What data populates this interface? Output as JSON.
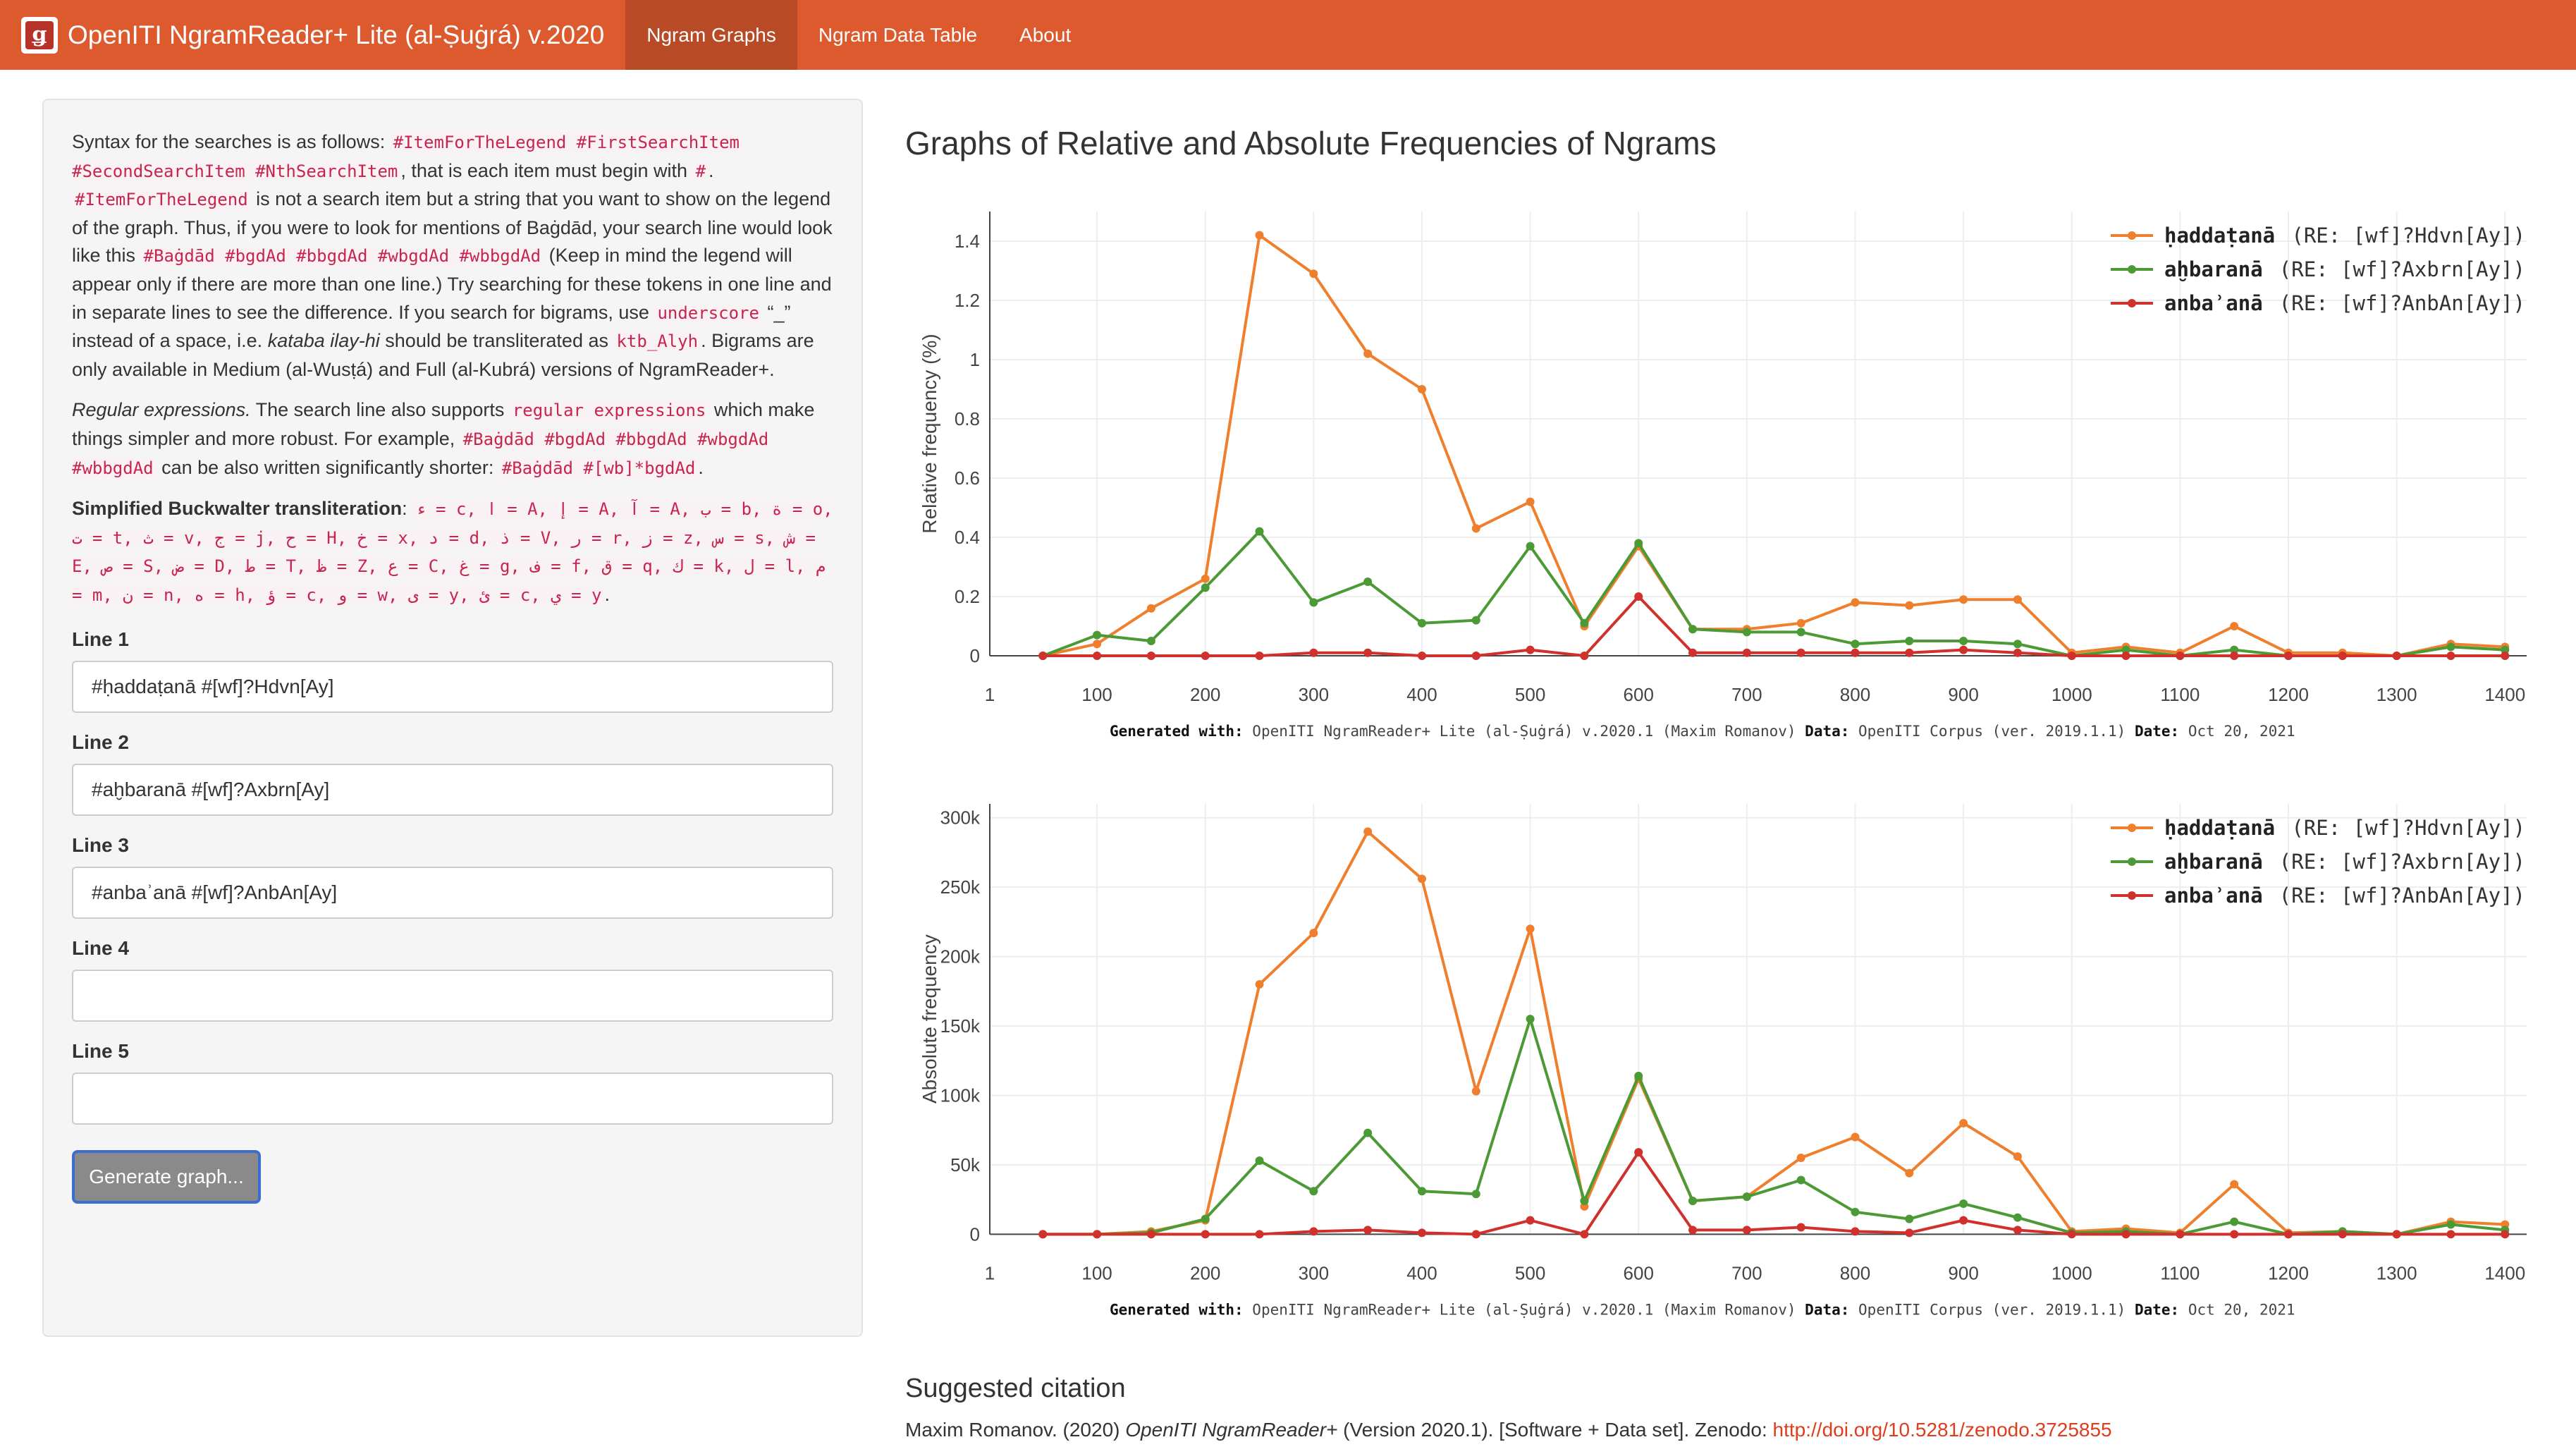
{
  "navbar": {
    "brand": "OpenITI NgramReader+ Lite (al-Ṣuġrá) v.2020",
    "logo_glyph": "ǥ",
    "tabs": [
      {
        "label": "Ngram Graphs",
        "active": true
      },
      {
        "label": "Ngram Data Table",
        "active": false
      },
      {
        "label": "About",
        "active": false
      }
    ]
  },
  "help": {
    "p1_a": "Syntax for the searches is as follows: ",
    "p1_code1": "#ItemForTheLegend #FirstSearchItem #SecondSearchItem #NthSearchItem",
    "p1_b": ", that is each item must begin with ",
    "p1_code2": "#",
    "p1_c": ". ",
    "p1_code3": "#ItemForTheLegend",
    "p1_d": " is not a search item but a string that you want to show on the legend of the graph. Thus, if you were to look for mentions of Baġdād, your search line would look like this ",
    "p1_code4": "#Baġdād #bgdAd #bbgdAd #wbgdAd #wbbgdAd",
    "p1_e": " (Keep in mind the legend will appear only if there are more than one line.) Try searching for these tokens in one line and in separate lines to see the difference. If you search for bigrams, use ",
    "p1_code5": "underscore",
    "p1_f": " “_” instead of a space, i.e. ",
    "p1_ital": "kataba ilay-hi",
    "p1_g": " should be transliterated as ",
    "p1_code6": "ktb_Alyh",
    "p1_h": ". Bigrams are only available in Medium (al-Wusṭá) and Full (al-Kubrá) versions of NgramReader+.",
    "p2_ital": "Regular expressions.",
    "p2_a": " The search line also supports ",
    "p2_code1": "regular expressions",
    "p2_b": " which make things simpler and more robust. For example, ",
    "p2_code2": "#Baġdād #bgdAd #bbgdAd #wbgdAd #wbbgdAd",
    "p2_c": " can be also written significantly shorter: ",
    "p2_code3": "#Baġdād #[wb]*bgdAd",
    "p2_d": ".",
    "p3_bold": "Simplified Buckwalter transliteration",
    "p3_a": ": ",
    "p3_code": "ء = c, ا = A, إ = A, آ = A, ب = b, ة = o, ت = t, ث = v, ج = j, ح = H, خ = x, د = d, ذ = V, ر = r, ز = z, س = s, ش = E, ص = S, ض = D, ط = T, ظ = Z, ع = C, غ = g, ف = f, ق = q, ك = k, ل = l, م = m, ن = n, ه = h, ؤ = c, و = w, ى = y, ئ = c, ي = y",
    "p3_end": "."
  },
  "form": {
    "lines": [
      {
        "label": "Line 1",
        "value": "#ḥaddaṭanā #[wf]?Hdvn[Ay]"
      },
      {
        "label": "Line 2",
        "value": "#aḫbaranā #[wf]?Axbrn[Ay]"
      },
      {
        "label": "Line 3",
        "value": "#anbaʾanā #[wf]?AnbAn[Ay]"
      },
      {
        "label": "Line 4",
        "value": ""
      },
      {
        "label": "Line 5",
        "value": ""
      }
    ],
    "button_label": "Generate graph..."
  },
  "main": {
    "title": "Graphs of Relative and Absolute Frequencies of Ngrams",
    "footer_generated_label": "Generated with:",
    "footer_generated_value": " OpenITI NgramReader+ Lite (al-Ṣuġrá) v.2020.1 (Maxim Romanov) ",
    "footer_data_label": "Data:",
    "footer_data_value": " OpenITI Corpus (ver. 2019.1.1) ",
    "footer_date_label": "Date:",
    "footer_date_value": " Oct 20, 2021"
  },
  "citation": {
    "heading": "Suggested citation",
    "author": "Maxim Romanov. (2020) ",
    "title": "OpenITI NgramReader+",
    "rest": " (Version 2020.1). [Software + Data set]. Zenodo: ",
    "link": "http://doi.org/10.5281/zenodo.3725855"
  },
  "colors": {
    "navbar": "#dd5a2e",
    "series_orange": "#ef7f2d",
    "series_green": "#4b9a35",
    "series_red": "#d0312d"
  },
  "chart_data": [
    {
      "type": "line",
      "ylabel": "Relative frequency (%)",
      "xlabel": "",
      "xlim": [
        1,
        1420
      ],
      "ylim": [
        0,
        1.5
      ],
      "xticks": [
        1,
        100,
        200,
        300,
        400,
        500,
        600,
        700,
        800,
        900,
        1000,
        1100,
        1200,
        1300,
        1400
      ],
      "yticks": [
        0,
        0.2,
        0.4,
        0.6,
        0.8,
        1,
        1.2,
        1.4
      ],
      "ytick_labels": [
        "0",
        "0.2",
        "0.4",
        "0.6",
        "0.8",
        "1",
        "1.2",
        "1.4"
      ],
      "legend": "top-right",
      "grid": true,
      "x": [
        50,
        100,
        150,
        200,
        250,
        300,
        350,
        400,
        450,
        500,
        550,
        600,
        650,
        700,
        750,
        800,
        850,
        900,
        950,
        1000,
        1050,
        1100,
        1150,
        1200,
        1250,
        1300,
        1350,
        1400
      ],
      "series": [
        {
          "name": "ḥaddaṭanā",
          "re": "(RE: [wf]?Hdvn[Ay])",
          "color": "#ef7f2d",
          "values": [
            0,
            0.04,
            0.16,
            0.26,
            1.42,
            1.29,
            1.02,
            0.9,
            0.43,
            0.52,
            0.1,
            0.37,
            0.09,
            0.09,
            0.11,
            0.18,
            0.17,
            0.19,
            0.19,
            0.01,
            0.03,
            0.01,
            0.1,
            0.01,
            0.01,
            0.0,
            0.04,
            0.03
          ]
        },
        {
          "name": "aḫbaranā",
          "re": "(RE: [wf]?Axbrn[Ay])",
          "color": "#4b9a35",
          "values": [
            0,
            0.07,
            0.05,
            0.23,
            0.42,
            0.18,
            0.25,
            0.11,
            0.12,
            0.37,
            0.11,
            0.38,
            0.09,
            0.08,
            0.08,
            0.04,
            0.05,
            0.05,
            0.04,
            0.0,
            0.02,
            0.0,
            0.02,
            0.0,
            0.0,
            0.0,
            0.03,
            0.02
          ]
        },
        {
          "name": "anbaʾanā",
          "re": "(RE: [wf]?AnbAn[Ay])",
          "color": "#d0312d",
          "values": [
            0,
            0,
            0,
            0,
            0.0,
            0.01,
            0.01,
            0.0,
            0.0,
            0.02,
            0.0,
            0.2,
            0.01,
            0.01,
            0.01,
            0.01,
            0.01,
            0.02,
            0.01,
            0.0,
            0.0,
            0.0,
            0.0,
            0.0,
            0.0,
            0.0,
            0.0,
            0.0
          ]
        }
      ]
    },
    {
      "type": "line",
      "ylabel": "Absolute frequency",
      "xlabel": "",
      "xlim": [
        1,
        1420
      ],
      "ylim": [
        -10000,
        310000
      ],
      "xticks": [
        1,
        100,
        200,
        300,
        400,
        500,
        600,
        700,
        800,
        900,
        1000,
        1100,
        1200,
        1300,
        1400
      ],
      "yticks": [
        0,
        50000,
        100000,
        150000,
        200000,
        250000,
        300000
      ],
      "ytick_labels": [
        "0",
        "50k",
        "100k",
        "150k",
        "200k",
        "250k",
        "300k"
      ],
      "legend": "top-right",
      "grid": true,
      "x": [
        50,
        100,
        150,
        200,
        250,
        300,
        350,
        400,
        450,
        500,
        550,
        600,
        650,
        700,
        750,
        800,
        850,
        900,
        950,
        1000,
        1050,
        1100,
        1150,
        1200,
        1250,
        1300,
        1350,
        1400
      ],
      "series": [
        {
          "name": "ḥaddaṭanā",
          "re": "(RE: [wf]?Hdvn[Ay])",
          "color": "#ef7f2d",
          "values": [
            0,
            0,
            2000,
            10000,
            180000,
            217000,
            290000,
            256000,
            103000,
            220000,
            20000,
            112000,
            24000,
            27000,
            55000,
            70000,
            44000,
            80000,
            56000,
            2000,
            4000,
            1000,
            36000,
            1000,
            2000,
            0,
            9000,
            7000
          ]
        },
        {
          "name": "aḫbaranā",
          "re": "(RE: [wf]?Axbrn[Ay])",
          "color": "#4b9a35",
          "values": [
            0,
            0,
            1000,
            11000,
            53000,
            31000,
            73000,
            31000,
            29000,
            155000,
            24000,
            114000,
            24000,
            27000,
            39000,
            16000,
            11000,
            22000,
            12000,
            1000,
            2000,
            0,
            9000,
            0,
            2000,
            0,
            7000,
            3000
          ]
        },
        {
          "name": "anbaʾanā",
          "re": "(RE: [wf]?AnbAn[Ay])",
          "color": "#d0312d",
          "values": [
            0,
            0,
            0,
            0,
            0,
            2000,
            3000,
            1000,
            0,
            10000,
            0,
            59000,
            3000,
            3000,
            5000,
            2000,
            1000,
            10000,
            3000,
            0,
            0,
            0,
            0,
            0,
            0,
            0,
            0,
            0
          ]
        }
      ]
    }
  ]
}
